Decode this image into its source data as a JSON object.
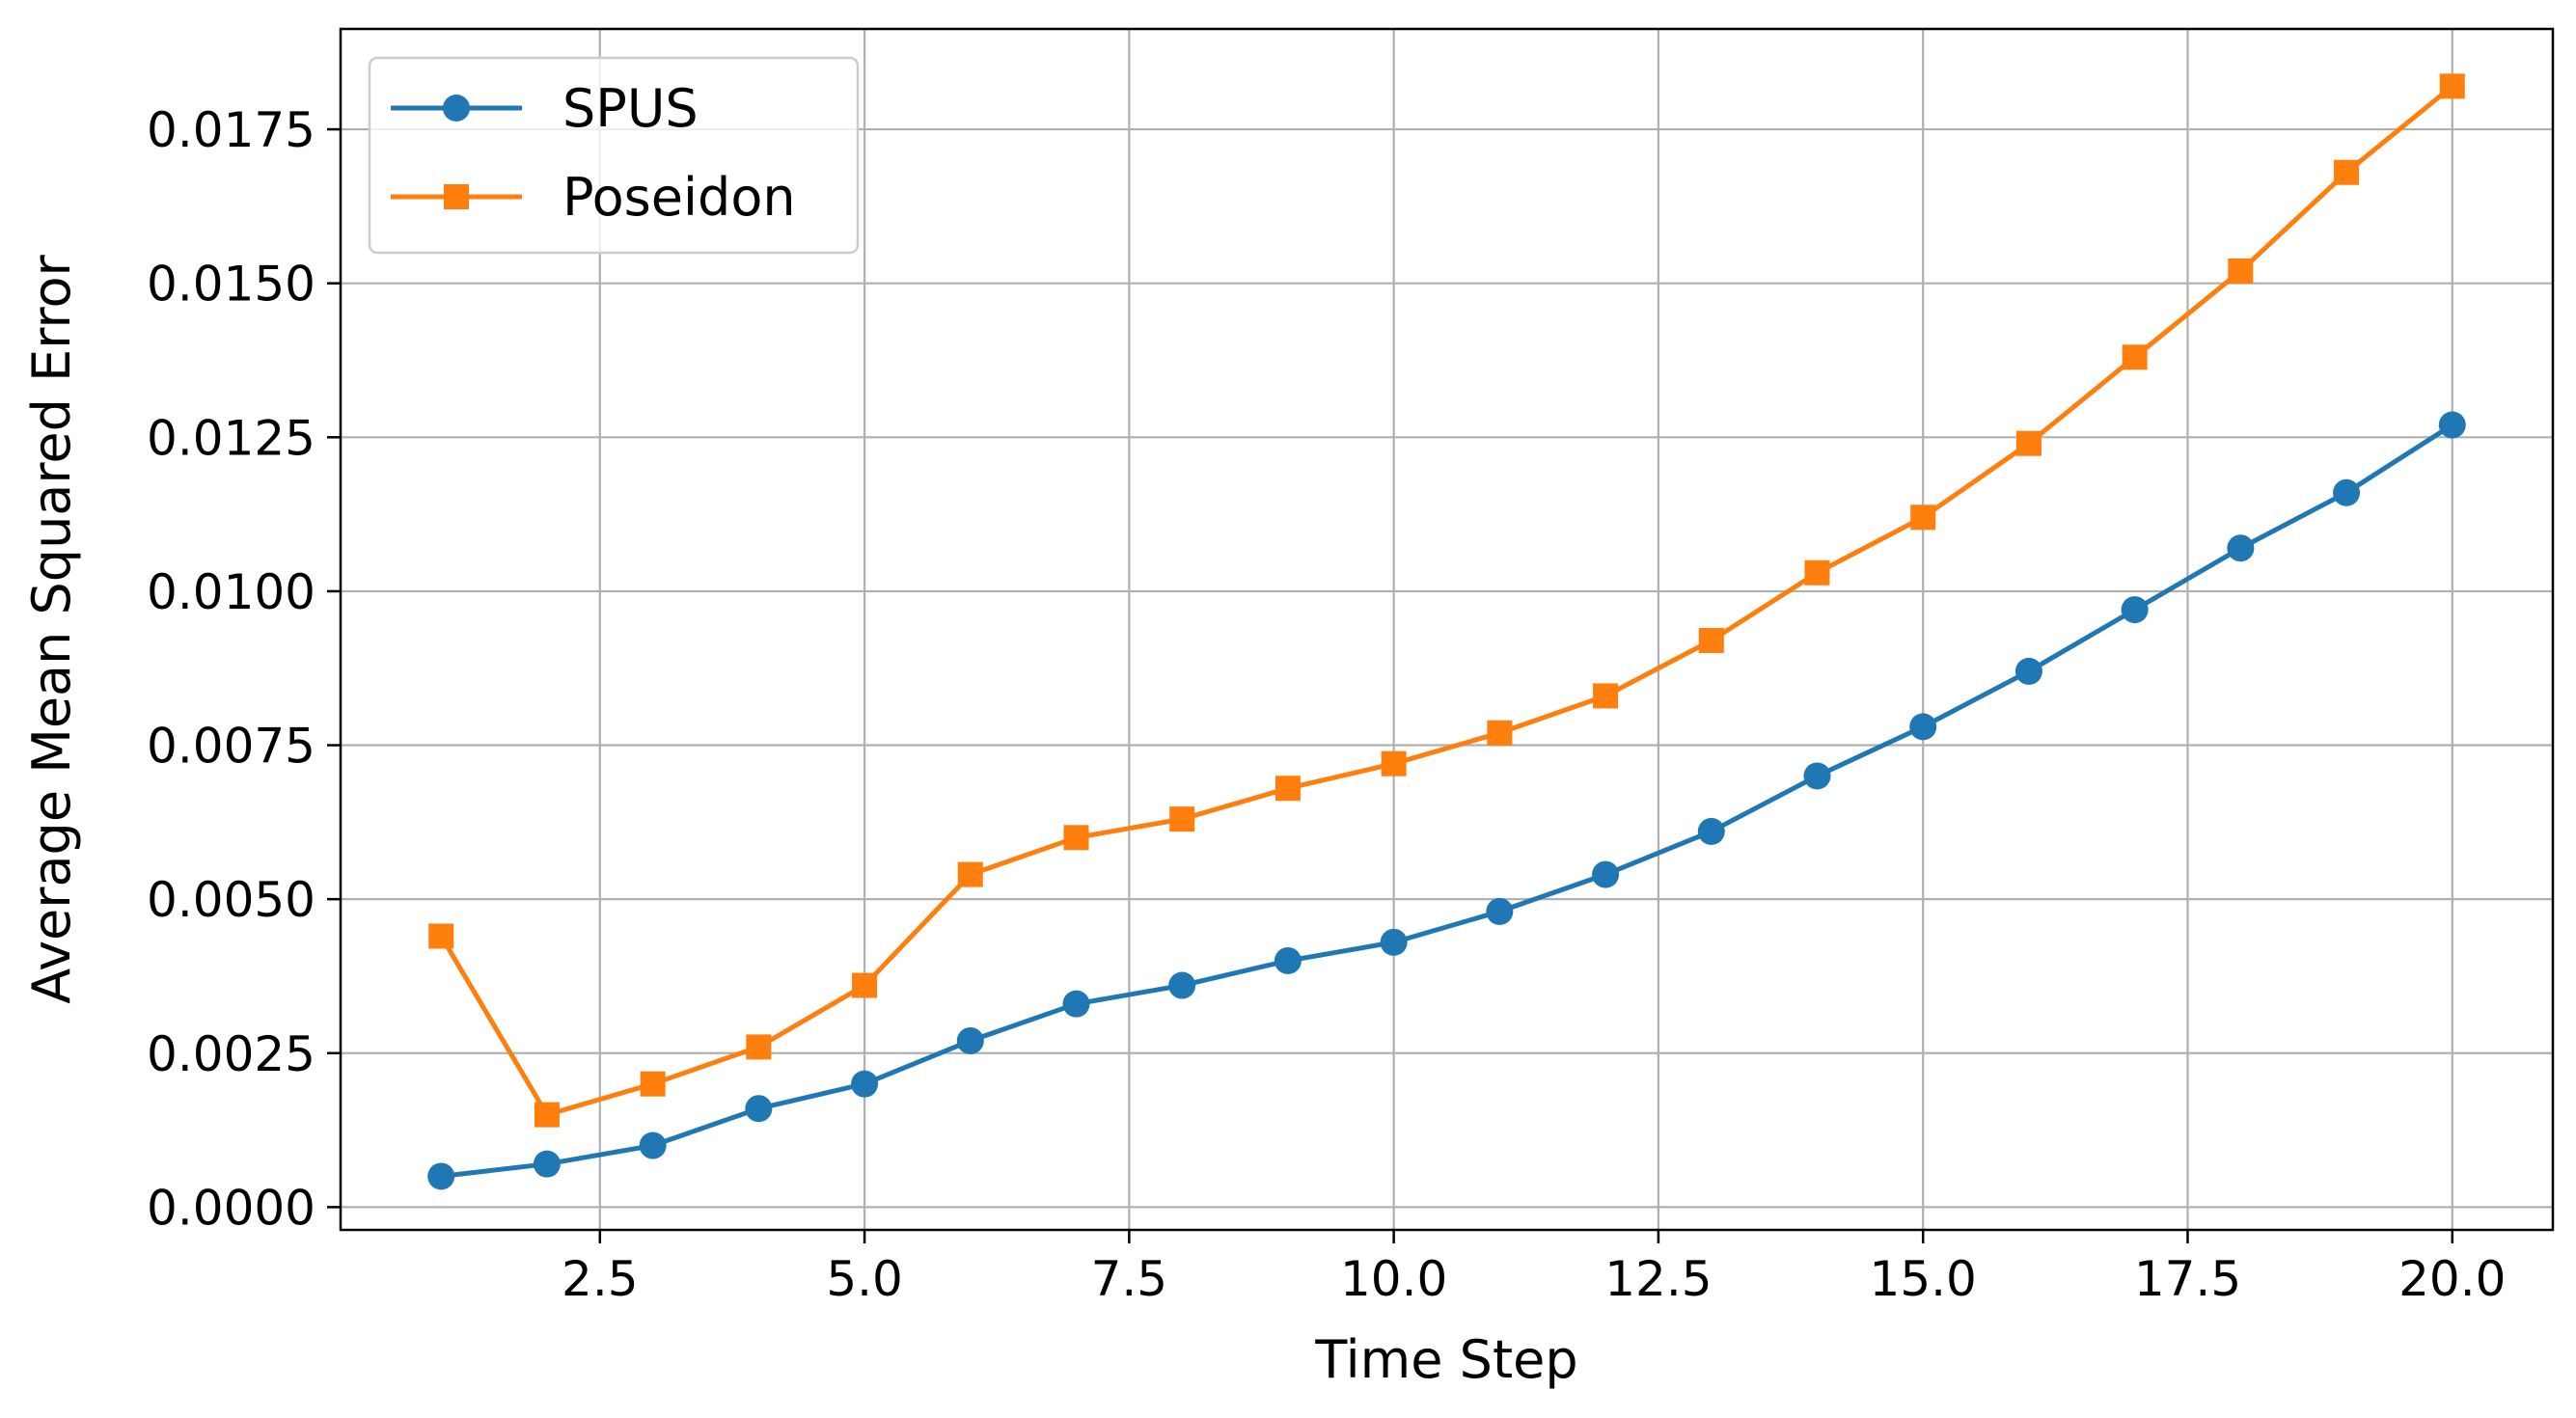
{
  "chart_data": {
    "type": "line",
    "title": "",
    "xlabel": "Time Step",
    "ylabel": "Average Mean Squared Error",
    "xlim": [
      0.05,
      20.95
    ],
    "ylim": [
      -0.00037,
      0.01913
    ],
    "xticks": [
      2.5,
      5.0,
      7.5,
      10.0,
      12.5,
      15.0,
      17.5,
      20.0
    ],
    "xtick_labels": [
      "2.5",
      "5.0",
      "7.5",
      "10.0",
      "12.5",
      "15.0",
      "17.5",
      "20.0"
    ],
    "yticks": [
      0.0,
      0.0025,
      0.005,
      0.0075,
      0.01,
      0.0125,
      0.015,
      0.0175
    ],
    "ytick_labels": [
      "0.0000",
      "0.0025",
      "0.0050",
      "0.0075",
      "0.0100",
      "0.0125",
      "0.0150",
      "0.0175"
    ],
    "grid": true,
    "legend_position": "top-left",
    "x": [
      1,
      2,
      3,
      4,
      5,
      6,
      7,
      8,
      9,
      10,
      11,
      12,
      13,
      14,
      15,
      16,
      17,
      18,
      19,
      20
    ],
    "series": [
      {
        "name": "SPUS",
        "color": "#1f77b4",
        "marker": "circle",
        "values": [
          0.0005,
          0.0007,
          0.001,
          0.0016,
          0.002,
          0.0027,
          0.0033,
          0.0036,
          0.004,
          0.0043,
          0.0048,
          0.0054,
          0.0061,
          0.007,
          0.0078,
          0.0087,
          0.0097,
          0.0107,
          0.0116,
          0.0127
        ]
      },
      {
        "name": "Poseidon",
        "color": "#ff7f0e",
        "marker": "square",
        "values": [
          0.0044,
          0.0015,
          0.002,
          0.0026,
          0.0036,
          0.0054,
          0.006,
          0.0063,
          0.0068,
          0.0072,
          0.0077,
          0.0083,
          0.0092,
          0.0103,
          0.0112,
          0.0124,
          0.0138,
          0.0152,
          0.0168,
          0.0182
        ]
      }
    ]
  }
}
